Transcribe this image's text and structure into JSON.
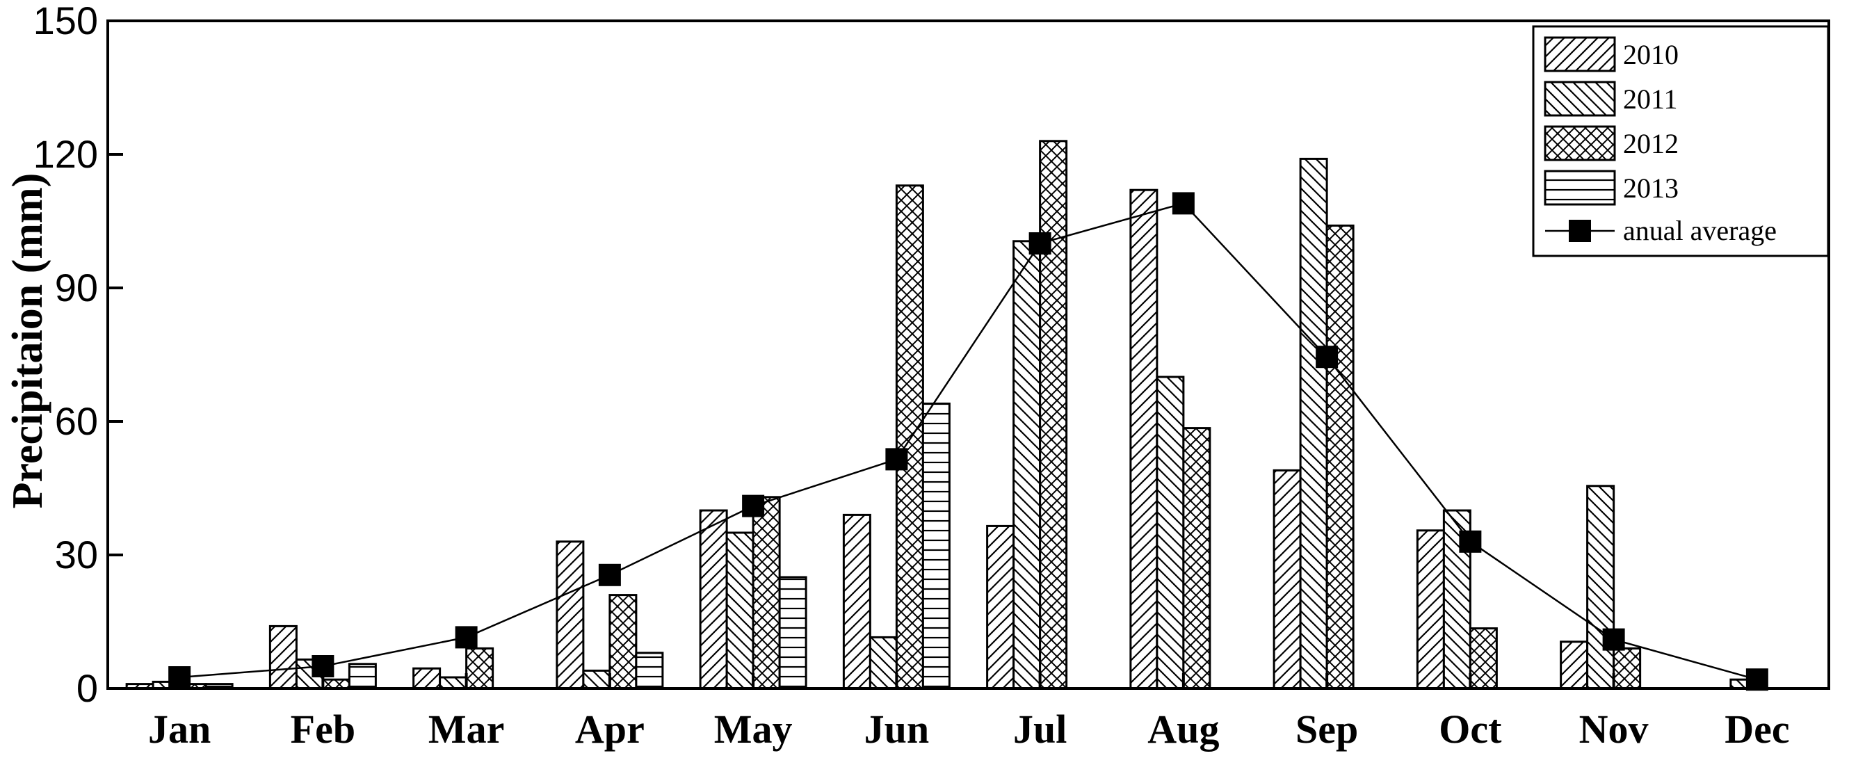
{
  "chart_data": {
    "type": "bar",
    "title": "",
    "xlabel": "",
    "ylabel": "Precipitaion (mm)",
    "ylim": [
      0,
      150
    ],
    "yticks": [
      0,
      30,
      60,
      90,
      120,
      150
    ],
    "categories": [
      "Jan",
      "Feb",
      "Mar",
      "Apr",
      "May",
      "Jun",
      "Jul",
      "Aug",
      "Sep",
      "Oct",
      "Nov",
      "Dec"
    ],
    "series": [
      {
        "name": "2010",
        "pattern": "diag-right",
        "values": [
          1,
          14,
          4.5,
          33,
          40,
          39,
          36.5,
          112,
          49,
          35.5,
          10.5,
          0
        ]
      },
      {
        "name": "2011",
        "pattern": "diag-left",
        "values": [
          1.5,
          6.5,
          2.5,
          4,
          35,
          11.5,
          100.5,
          70,
          119,
          40,
          45.5,
          2
        ]
      },
      {
        "name": "2012",
        "pattern": "crosshatch",
        "values": [
          1,
          2,
          9,
          21,
          43,
          113,
          123,
          58.5,
          104,
          13.5,
          9,
          0
        ]
      },
      {
        "name": "2013",
        "pattern": "horizontal",
        "values": [
          1,
          5.5,
          0,
          8,
          25,
          64,
          0,
          0,
          0,
          0,
          0,
          0
        ]
      }
    ],
    "line_series": {
      "name": "anual average",
      "values": [
        2.5,
        5,
        11.5,
        25.5,
        41,
        51.5,
        100,
        109,
        74.5,
        33,
        11,
        2
      ],
      "marker": "square",
      "color": "#000000"
    },
    "legend_position": "top-right",
    "grid": false
  }
}
